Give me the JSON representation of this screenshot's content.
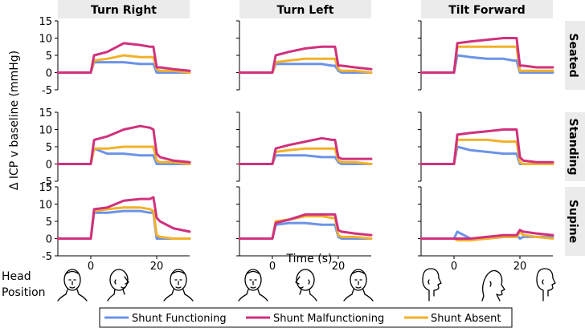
{
  "chart_data": {
    "type": "line",
    "ylabel": "Δ ICP v baseline (mmHg)",
    "xlabel": "Time (s)",
    "xlim": [
      -10,
      30
    ],
    "ylim": [
      -5,
      15
    ],
    "x_ticks": [
      "0",
      "20"
    ],
    "y_ticks": [
      "15",
      "10",
      "5",
      "0",
      "-5"
    ],
    "columns": [
      "Turn Right",
      "Turn Left",
      "Tilt Forward"
    ],
    "rows": [
      "Seated",
      "Standing",
      "Supine"
    ],
    "legend": [
      "Shunt Functioning",
      "Shunt Malfunctioning",
      "Shunt Absent"
    ],
    "colors": {
      "functioning": "#6b93e8",
      "malfunctioning": "#d0317d",
      "absent": "#f2b129",
      "axis": "#000000",
      "header_bg": "#ebebeb"
    },
    "x": [
      -10,
      0,
      1,
      5,
      10,
      15,
      18,
      19,
      20,
      21,
      25,
      30
    ],
    "panels": [
      {
        "row": "Seated",
        "col": "Turn Right",
        "functioning": [
          0,
          0,
          3,
          3,
          3,
          2.5,
          2.5,
          2.5,
          0,
          0,
          0,
          0
        ],
        "malfunctioning": [
          0,
          0,
          5,
          6,
          8.5,
          8,
          7.5,
          7.5,
          1.5,
          1.5,
          1,
          0.5
        ],
        "absent": [
          0,
          0,
          3.5,
          4,
          5,
          4.5,
          4.5,
          4.5,
          1,
          0.5,
          0.5,
          0
        ]
      },
      {
        "row": "Seated",
        "col": "Turn Left",
        "functioning": [
          0,
          0,
          2.5,
          2.5,
          2.5,
          2.5,
          2,
          2,
          0.5,
          0,
          0,
          0
        ],
        "malfunctioning": [
          0,
          0,
          5,
          6,
          7,
          7.5,
          7.5,
          7.5,
          2,
          2,
          1.5,
          1
        ],
        "absent": [
          0,
          0,
          3,
          3.5,
          4,
          4,
          4,
          4,
          1,
          0.5,
          0.5,
          0
        ]
      },
      {
        "row": "Seated",
        "col": "Tilt Forward",
        "functioning": [
          0,
          0,
          5,
          4.5,
          4,
          4,
          3.5,
          3.5,
          0,
          0,
          0,
          0
        ],
        "malfunctioning": [
          0,
          0,
          8.5,
          9,
          9.5,
          10,
          10,
          10,
          2,
          2,
          1.5,
          1.5
        ],
        "absent": [
          0,
          0,
          7.5,
          7.5,
          7.5,
          7.5,
          7.5,
          7.5,
          0.5,
          0.5,
          0.5,
          0.5
        ]
      },
      {
        "row": "Standing",
        "col": "Turn Right",
        "functioning": [
          0,
          0,
          4.5,
          3,
          3,
          2.5,
          2.5,
          2.5,
          0,
          0,
          0,
          0
        ],
        "malfunctioning": [
          0,
          0,
          7,
          8,
          10,
          11,
          10.5,
          10,
          3,
          2,
          1,
          0.5
        ],
        "absent": [
          0,
          0,
          4.5,
          4.5,
          5,
          5,
          5,
          5,
          1,
          0.5,
          0.5,
          0
        ]
      },
      {
        "row": "Standing",
        "col": "Turn Left",
        "functioning": [
          0,
          0,
          2.5,
          2.5,
          2.5,
          2,
          2,
          2,
          0.5,
          0,
          0,
          0
        ],
        "malfunctioning": [
          0,
          0,
          4.5,
          5.5,
          6.5,
          7.5,
          7,
          7,
          2,
          1.5,
          1.5,
          1.5
        ],
        "absent": [
          0,
          0,
          3.5,
          4,
          4.5,
          4.5,
          4.5,
          4.5,
          1,
          0.5,
          0.5,
          0
        ]
      },
      {
        "row": "Standing",
        "col": "Tilt Forward",
        "functioning": [
          0,
          0,
          5,
          4,
          3.5,
          3,
          3,
          3,
          0,
          0,
          0,
          0
        ],
        "malfunctioning": [
          0,
          0,
          8.5,
          9,
          9.5,
          10,
          10,
          10,
          2,
          1,
          0.5,
          0.5
        ],
        "absent": [
          0,
          0,
          7,
          7,
          7,
          6.5,
          6.5,
          6.5,
          0.5,
          0,
          0,
          0
        ]
      },
      {
        "row": "Supine",
        "col": "Turn Right",
        "functioning": [
          0,
          0,
          7.5,
          7.5,
          8,
          8,
          7.5,
          7.5,
          0,
          0,
          0,
          0
        ],
        "malfunctioning": [
          0,
          0,
          8.5,
          9,
          11,
          11.5,
          11.5,
          12,
          6,
          5,
          3,
          2
        ],
        "absent": [
          0,
          0,
          8,
          8.5,
          9,
          9,
          8.5,
          8,
          1,
          0.5,
          0,
          0
        ]
      },
      {
        "row": "Supine",
        "col": "Turn Left",
        "functioning": [
          0,
          0,
          4,
          4.5,
          4.5,
          4,
          4,
          4,
          0.5,
          0,
          0,
          0
        ],
        "malfunctioning": [
          0,
          0,
          4.5,
          5.5,
          7,
          7,
          7,
          7,
          2.5,
          2,
          1.5,
          1
        ],
        "absent": [
          0,
          0,
          5,
          5.5,
          6.5,
          6.5,
          6,
          6,
          1,
          0.5,
          0.5,
          0
        ]
      },
      {
        "row": "Supine",
        "col": "Tilt Forward",
        "functioning": [
          0,
          0,
          2,
          0,
          0,
          0.5,
          0.5,
          1,
          0,
          0.5,
          0.5,
          0.5
        ],
        "malfunctioning": [
          0,
          0,
          0,
          0,
          0.5,
          1,
          1,
          1,
          2.5,
          2,
          1.5,
          1
        ],
        "absent": [
          0,
          0,
          -0.5,
          -0.5,
          0,
          0.5,
          0.5,
          0.5,
          2,
          1,
          0.5,
          0
        ]
      }
    ]
  },
  "head_position": {
    "label_line1": "Head",
    "label_line2": "Position",
    "icons": [
      "face-front-icon",
      "head-turned-right-icon",
      "face-front-icon",
      "face-front-icon",
      "head-turned-left-icon",
      "face-front-icon",
      "head-profile-icon",
      "head-tilted-forward-icon",
      "head-profile-icon"
    ]
  }
}
